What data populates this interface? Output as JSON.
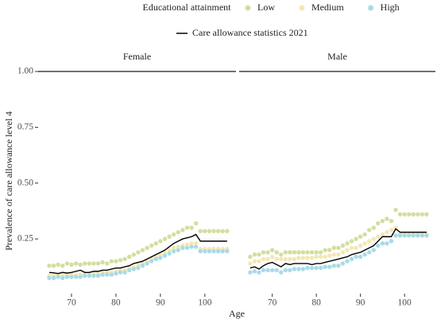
{
  "chart_data": {
    "type": "scatter",
    "legend_title": "Educational attainment",
    "x_label": "Age",
    "y_label": "Prevalence of care allowance level 4",
    "xlim": [
      62.5,
      107
    ],
    "ylim": [
      0.005,
      1.018
    ],
    "xticks": [
      70,
      80,
      90,
      100
    ],
    "yticks": [
      {
        "value": 0.25,
        "label": "0.25"
      },
      {
        "value": 0.5,
        "label": "0.50"
      },
      {
        "value": 0.75,
        "label": "0.75"
      },
      {
        "value": 1,
        "label": "1.00"
      }
    ],
    "reference_line": 1,
    "x": [
      65,
      66,
      67,
      68,
      69,
      70,
      71,
      72,
      73,
      74,
      75,
      76,
      77,
      78,
      79,
      80,
      81,
      82,
      83,
      84,
      85,
      86,
      87,
      88,
      89,
      90,
      91,
      92,
      93,
      94,
      95,
      96,
      97,
      98,
      99,
      100,
      101,
      102,
      103,
      104,
      105
    ],
    "facets": [
      {
        "name": "Female",
        "series": [
          {
            "name": "Low",
            "type": "scatter",
            "color": "#d3dea0",
            "values": [
              0.13,
              0.13,
              0.135,
              0.13,
              0.14,
              0.135,
              0.14,
              0.135,
              0.14,
              0.14,
              0.14,
              0.14,
              0.145,
              0.14,
              0.15,
              0.15,
              0.155,
              0.16,
              0.17,
              0.18,
              0.19,
              0.2,
              0.21,
              0.22,
              0.23,
              0.24,
              0.25,
              0.26,
              0.27,
              0.28,
              0.29,
              0.3,
              0.3,
              0.32,
              0.285,
              0.285,
              0.285,
              0.285,
              0.285,
              0.285,
              0.285
            ]
          },
          {
            "name": "Medium",
            "type": "scatter",
            "color": "#f3e8b4",
            "values": [
              0.085,
              0.085,
              0.09,
              0.085,
              0.09,
              0.09,
              0.09,
              0.09,
              0.095,
              0.095,
              0.095,
              0.095,
              0.1,
              0.1,
              0.1,
              0.105,
              0.11,
              0.11,
              0.12,
              0.125,
              0.135,
              0.14,
              0.15,
              0.16,
              0.17,
              0.18,
              0.19,
              0.2,
              0.21,
              0.215,
              0.22,
              0.225,
              0.23,
              0.23,
              0.205,
              0.205,
              0.205,
              0.205,
              0.205,
              0.205,
              0.205
            ]
          },
          {
            "name": "High",
            "type": "scatter",
            "color": "#a9dbe8",
            "values": [
              0.075,
              0.075,
              0.08,
              0.075,
              0.08,
              0.08,
              0.08,
              0.08,
              0.085,
              0.085,
              0.085,
              0.085,
              0.09,
              0.09,
              0.09,
              0.095,
              0.1,
              0.1,
              0.11,
              0.115,
              0.12,
              0.13,
              0.14,
              0.15,
              0.16,
              0.165,
              0.175,
              0.185,
              0.195,
              0.2,
              0.21,
              0.21,
              0.215,
              0.215,
              0.195,
              0.195,
              0.195,
              0.195,
              0.195,
              0.195,
              0.195
            ]
          },
          {
            "name": "Care allowance statistics 2021",
            "type": "line",
            "color": "#000000",
            "values": [
              0.1,
              0.098,
              0.095,
              0.1,
              0.097,
              0.1,
              0.105,
              0.11,
              0.1,
              0.1,
              0.105,
              0.105,
              0.11,
              0.11,
              0.115,
              0.12,
              0.12,
              0.125,
              0.13,
              0.14,
              0.145,
              0.15,
              0.16,
              0.17,
              0.18,
              0.19,
              0.2,
              0.215,
              0.23,
              0.24,
              0.25,
              0.255,
              0.26,
              0.27,
              0.24,
              0.24,
              0.24,
              0.24,
              0.24,
              0.24,
              0.24
            ]
          }
        ]
      },
      {
        "name": "Male",
        "series": [
          {
            "name": "Low",
            "type": "scatter",
            "color": "#d3dea0",
            "values": [
              0.17,
              0.18,
              0.18,
              0.19,
              0.19,
              0.2,
              0.19,
              0.18,
              0.19,
              0.19,
              0.19,
              0.19,
              0.19,
              0.19,
              0.19,
              0.19,
              0.19,
              0.2,
              0.2,
              0.21,
              0.21,
              0.22,
              0.23,
              0.24,
              0.25,
              0.26,
              0.27,
              0.29,
              0.3,
              0.32,
              0.33,
              0.34,
              0.33,
              0.38,
              0.36,
              0.36,
              0.36,
              0.36,
              0.36,
              0.36,
              0.36
            ]
          },
          {
            "name": "Medium",
            "type": "scatter",
            "color": "#f3e8b4",
            "values": [
              0.14,
              0.15,
              0.15,
              0.16,
              0.16,
              0.17,
              0.16,
              0.16,
              0.16,
              0.16,
              0.16,
              0.165,
              0.165,
              0.165,
              0.165,
              0.17,
              0.17,
              0.17,
              0.175,
              0.18,
              0.18,
              0.19,
              0.2,
              0.21,
              0.21,
              0.22,
              0.23,
              0.24,
              0.25,
              0.26,
              0.27,
              0.28,
              0.29,
              0.3,
              0.27,
              0.27,
              0.27,
              0.27,
              0.27,
              0.27,
              0.27
            ]
          },
          {
            "name": "High",
            "type": "scatter",
            "color": "#a9dbe8",
            "values": [
              0.1,
              0.105,
              0.1,
              0.11,
              0.11,
              0.11,
              0.11,
              0.1,
              0.11,
              0.11,
              0.115,
              0.115,
              0.115,
              0.12,
              0.12,
              0.12,
              0.12,
              0.125,
              0.125,
              0.13,
              0.13,
              0.14,
              0.15,
              0.16,
              0.17,
              0.17,
              0.18,
              0.19,
              0.2,
              0.22,
              0.23,
              0.23,
              0.24,
              0.265,
              0.265,
              0.265,
              0.265,
              0.265,
              0.265,
              0.265,
              0.265
            ]
          },
          {
            "name": "Care allowance statistics 2021",
            "type": "line",
            "color": "#000000",
            "values": [
              0.12,
              0.125,
              0.115,
              0.13,
              0.14,
              0.145,
              0.135,
              0.125,
              0.14,
              0.135,
              0.14,
              0.14,
              0.14,
              0.14,
              0.135,
              0.14,
              0.14,
              0.145,
              0.15,
              0.155,
              0.16,
              0.165,
              0.17,
              0.18,
              0.185,
              0.19,
              0.2,
              0.21,
              0.22,
              0.24,
              0.26,
              0.26,
              0.26,
              0.295,
              0.28,
              0.28,
              0.28,
              0.28,
              0.28,
              0.28,
              0.28
            ]
          }
        ]
      }
    ]
  }
}
